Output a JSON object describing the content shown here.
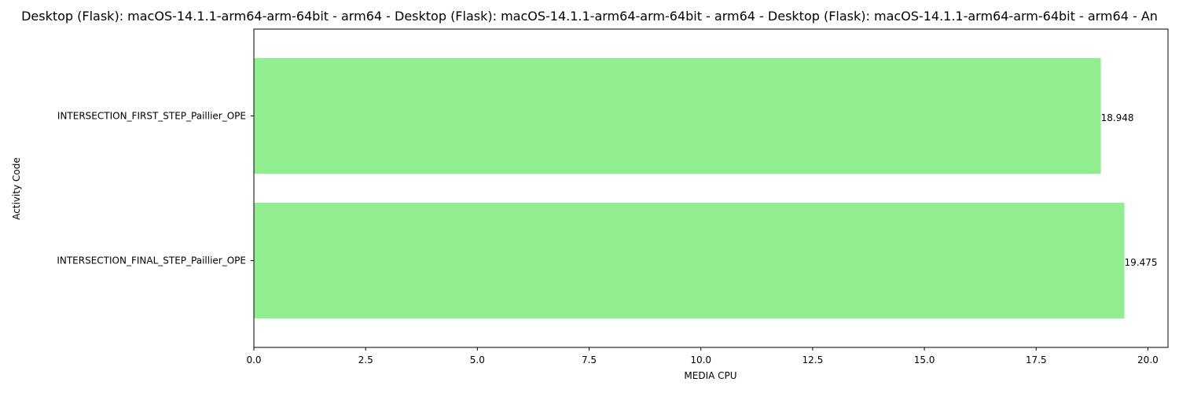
{
  "chart_data": {
    "type": "bar",
    "orientation": "horizontal",
    "title": "Desktop (Flask): macOS-14.1.1-arm64-arm-64bit - arm64 - Desktop (Flask): macOS-14.1.1-arm64-arm-64bit - arm64 - Desktop (Flask): macOS-14.1.1-arm64-arm-64bit - arm64 - An",
    "xlabel": "MEDIA CPU",
    "ylabel": "Activity Code",
    "categories": [
      "INTERSECTION_FIRST_STEP_Paillier_OPE",
      "INTERSECTION_FINAL_STEP_Paillier_OPE"
    ],
    "values": [
      18.948,
      19.475
    ],
    "value_labels": [
      "18.948",
      "19.475"
    ],
    "xlim": [
      0,
      20.45
    ],
    "xticks": [
      0,
      2.5,
      5,
      7.5,
      10,
      12.5,
      15,
      17.5,
      20
    ],
    "xtick_labels": [
      "0.0",
      "2.5",
      "5.0",
      "7.5",
      "10.0",
      "12.5",
      "15.0",
      "17.5",
      "20.0"
    ],
    "bar_color": "#90ee90",
    "grid": false,
    "legend": "none"
  }
}
